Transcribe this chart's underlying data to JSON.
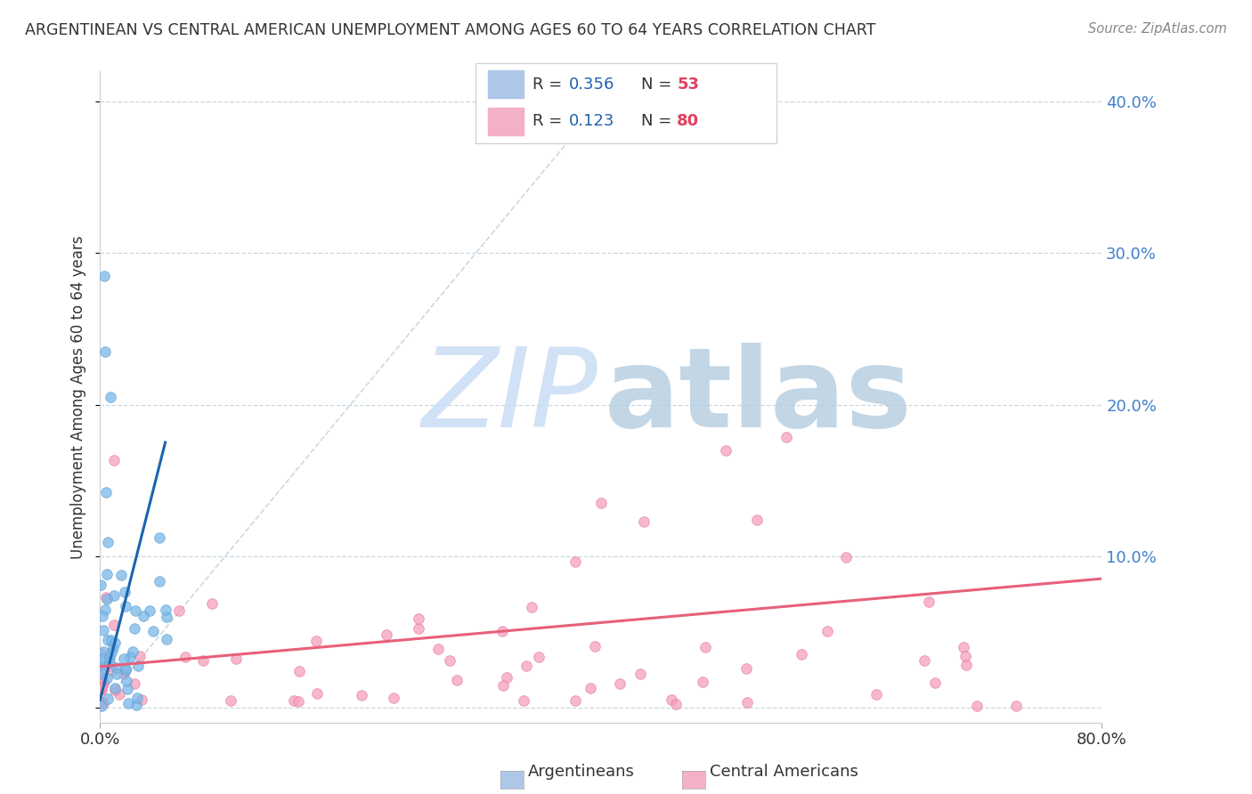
{
  "title": "ARGENTINEAN VS CENTRAL AMERICAN UNEMPLOYMENT AMONG AGES 60 TO 64 YEARS CORRELATION CHART",
  "source": "Source: ZipAtlas.com",
  "ylabel": "Unemployment Among Ages 60 to 64 years",
  "xlim": [
    0,
    0.8
  ],
  "ylim": [
    -0.01,
    0.42
  ],
  "ytick_vals": [
    0.0,
    0.1,
    0.2,
    0.3,
    0.4
  ],
  "ytick_labels_right": [
    "",
    "10.0%",
    "20.0%",
    "30.0%",
    "40.0%"
  ],
  "xtick_vals": [
    0.0,
    0.8
  ],
  "xtick_labels": [
    "0.0%",
    "80.0%"
  ],
  "R_argentinean": 0.356,
  "N_argentinean": 53,
  "R_central": 0.123,
  "N_central": 80,
  "blue_scatter": "#7ab8e8",
  "blue_edge": "#5a9fd4",
  "pink_scatter": "#f5a0bc",
  "pink_edge": "#e878a0",
  "blue_line": "#1a65b0",
  "pink_line": "#e8607a",
  "diagonal_color": "#c8d4dc",
  "legend_blue_box": "#aec6e8",
  "legend_pink_box": "#f4b0c4",
  "legend_text_color": "#2060b0",
  "legend_N_color": "#e04060",
  "watermark_zip_color": "#ccdff5",
  "watermark_atlas_color": "#b5ccdf",
  "title_color": "#333333",
  "source_color": "#888888",
  "ytick_color": "#4080c8",
  "grid_color": "#c8d8e4",
  "blue_line_x0": 0.0,
  "blue_line_y0": 0.005,
  "blue_line_x1": 0.052,
  "blue_line_y1": 0.175,
  "pink_line_x0": 0.0,
  "pink_line_y0": 0.027,
  "pink_line_x1": 0.8,
  "pink_line_y1": 0.085
}
